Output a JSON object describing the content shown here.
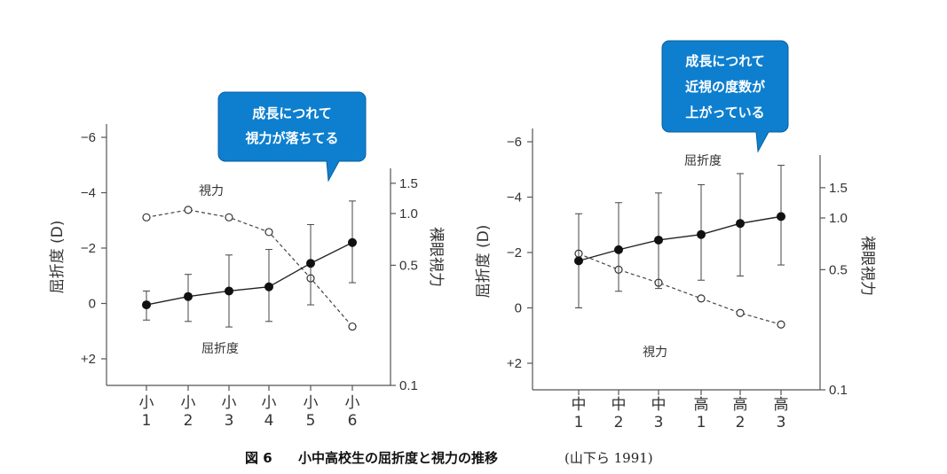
{
  "caption": {
    "figure_no": "図 6",
    "title": "小中高校生の屈折度と視力の推移",
    "source": "(山下ら 1991)"
  },
  "chart_data": [
    {
      "type": "line",
      "id": "left",
      "left_axis_label": "屈折度 (D)",
      "right_axis_label": "裸眼視力",
      "left_ticks": [
        "−6",
        "−4",
        "−2",
        "0",
        "+2"
      ],
      "left_tick_values": [
        -6,
        -4,
        -2,
        0,
        2
      ],
      "right_ticks": [
        "1.5",
        "1.0",
        "0.5",
        "0.1"
      ],
      "right_tick_values": [
        1.5,
        1.0,
        0.5,
        0.1
      ],
      "categories": [
        {
          "top": "小",
          "bottom": "1"
        },
        {
          "top": "小",
          "bottom": "2"
        },
        {
          "top": "小",
          "bottom": "3"
        },
        {
          "top": "小",
          "bottom": "4"
        },
        {
          "top": "小",
          "bottom": "5"
        },
        {
          "top": "小",
          "bottom": "6"
        }
      ],
      "refraction": {
        "label": "屈折度",
        "values": [
          0.05,
          -0.25,
          -0.45,
          -0.6,
          -1.45,
          -2.2
        ],
        "error_low": [
          0.6,
          0.65,
          0.85,
          0.65,
          0.05,
          -0.75
        ],
        "error_high": [
          -0.45,
          -1.05,
          -1.75,
          -1.95,
          -2.85,
          -3.7
        ]
      },
      "acuity": {
        "label": "視力",
        "values": [
          0.95,
          1.05,
          0.95,
          0.78,
          0.42,
          0.22
        ]
      },
      "callout": {
        "lines": [
          "成長につれて",
          "視力が落ちてる"
        ]
      }
    },
    {
      "type": "line",
      "id": "right",
      "left_axis_label": "屈折度 (D)",
      "right_axis_label": "裸眼視力",
      "left_ticks": [
        "−6",
        "−4",
        "−2",
        "0",
        "+2"
      ],
      "left_tick_values": [
        -6,
        -4,
        -2,
        0,
        2
      ],
      "right_ticks": [
        "1.5",
        "1.0",
        "0.5",
        "0.1"
      ],
      "right_tick_values": [
        1.5,
        1.0,
        0.5,
        0.1
      ],
      "categories": [
        {
          "top": "中",
          "bottom": "1"
        },
        {
          "top": "中",
          "bottom": "2"
        },
        {
          "top": "中",
          "bottom": "3"
        },
        {
          "top": "高",
          "bottom": "1"
        },
        {
          "top": "高",
          "bottom": "2"
        },
        {
          "top": "高",
          "bottom": "3"
        }
      ],
      "refraction": {
        "label": "屈折度",
        "values": [
          -1.7,
          -2.1,
          -2.45,
          -2.65,
          -3.05,
          -3.3
        ],
        "error_low": [
          0.0,
          -0.6,
          -0.7,
          -1.0,
          -1.15,
          -1.55
        ],
        "error_high": [
          -3.4,
          -3.8,
          -4.15,
          -4.45,
          -4.85,
          -5.15
        ]
      },
      "acuity": {
        "label": "視力",
        "values": [
          0.62,
          0.5,
          0.42,
          0.34,
          0.28,
          0.24
        ]
      },
      "callout": {
        "lines": [
          "成長につれて",
          "近視の度数が",
          "上がっている"
        ]
      }
    }
  ]
}
